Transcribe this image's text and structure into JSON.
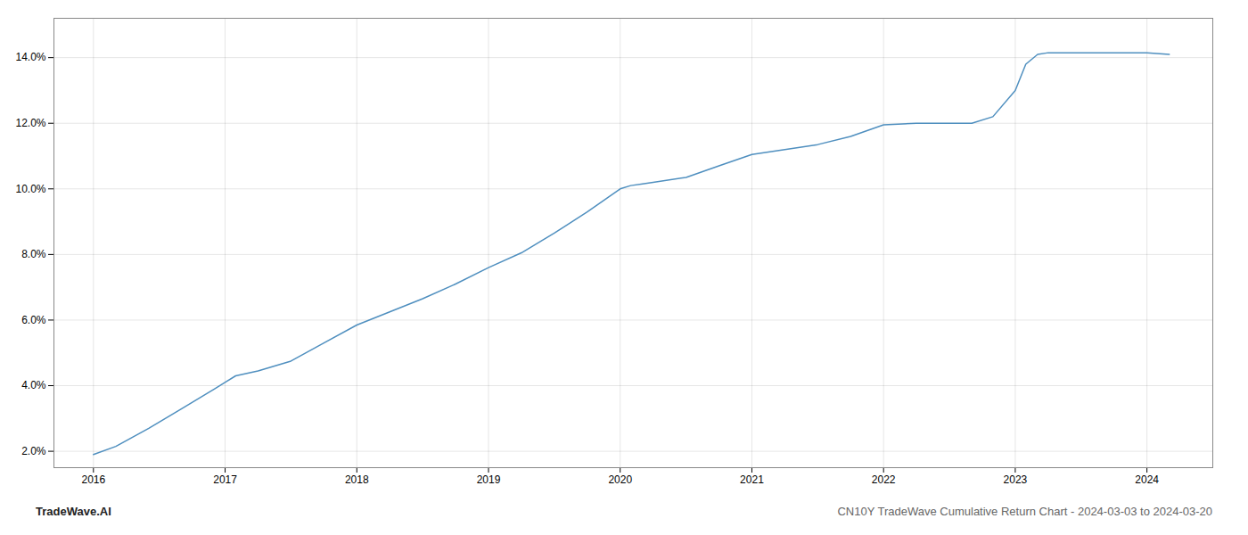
{
  "chart_data": {
    "type": "line",
    "title": "CN10Y TradeWave Cumulative Return Chart - 2024-03-03 to 2024-03-20",
    "annotations": [
      "TradeWave.AI"
    ],
    "x": [
      2016.0,
      2016.17,
      2016.42,
      2016.67,
      2016.92,
      2017.08,
      2017.25,
      2017.5,
      2017.75,
      2018.0,
      2018.25,
      2018.5,
      2018.75,
      2019.0,
      2019.25,
      2019.5,
      2019.75,
      2020.0,
      2020.08,
      2020.17,
      2020.25,
      2020.5,
      2020.75,
      2021.0,
      2021.25,
      2021.5,
      2021.75,
      2022.0,
      2022.25,
      2022.5,
      2022.67,
      2022.83,
      2023.0,
      2023.08,
      2023.17,
      2023.25,
      2023.5,
      2023.75,
      2024.0,
      2024.17
    ],
    "values": [
      1.9,
      2.15,
      2.7,
      3.3,
      3.9,
      4.3,
      4.45,
      4.75,
      5.3,
      5.85,
      6.25,
      6.65,
      7.1,
      7.6,
      8.05,
      8.65,
      9.3,
      10.0,
      10.1,
      10.15,
      10.2,
      10.35,
      10.7,
      11.05,
      11.2,
      11.35,
      11.6,
      11.95,
      12.0,
      12.0,
      12.0,
      12.2,
      13.0,
      13.8,
      14.1,
      14.15,
      14.15,
      14.15,
      14.15,
      14.1
    ],
    "color": "#4f8fbf",
    "xlim": [
      2015.7,
      2024.5
    ],
    "xticks": [
      2016,
      2017,
      2018,
      2019,
      2020,
      2021,
      2022,
      2023,
      2024
    ],
    "ylim": [
      1.5,
      15.2
    ],
    "yticks": [
      {
        "value": 2.0,
        "label": "2.0%"
      },
      {
        "value": 4.0,
        "label": "4.0%"
      },
      {
        "value": 6.0,
        "label": "6.0%"
      },
      {
        "value": 8.0,
        "label": "8.0%"
      },
      {
        "value": 10.0,
        "label": "10.0%"
      },
      {
        "value": 12.0,
        "label": "12.0%"
      },
      {
        "value": 14.0,
        "label": "14.0%"
      }
    ],
    "grid": true
  }
}
